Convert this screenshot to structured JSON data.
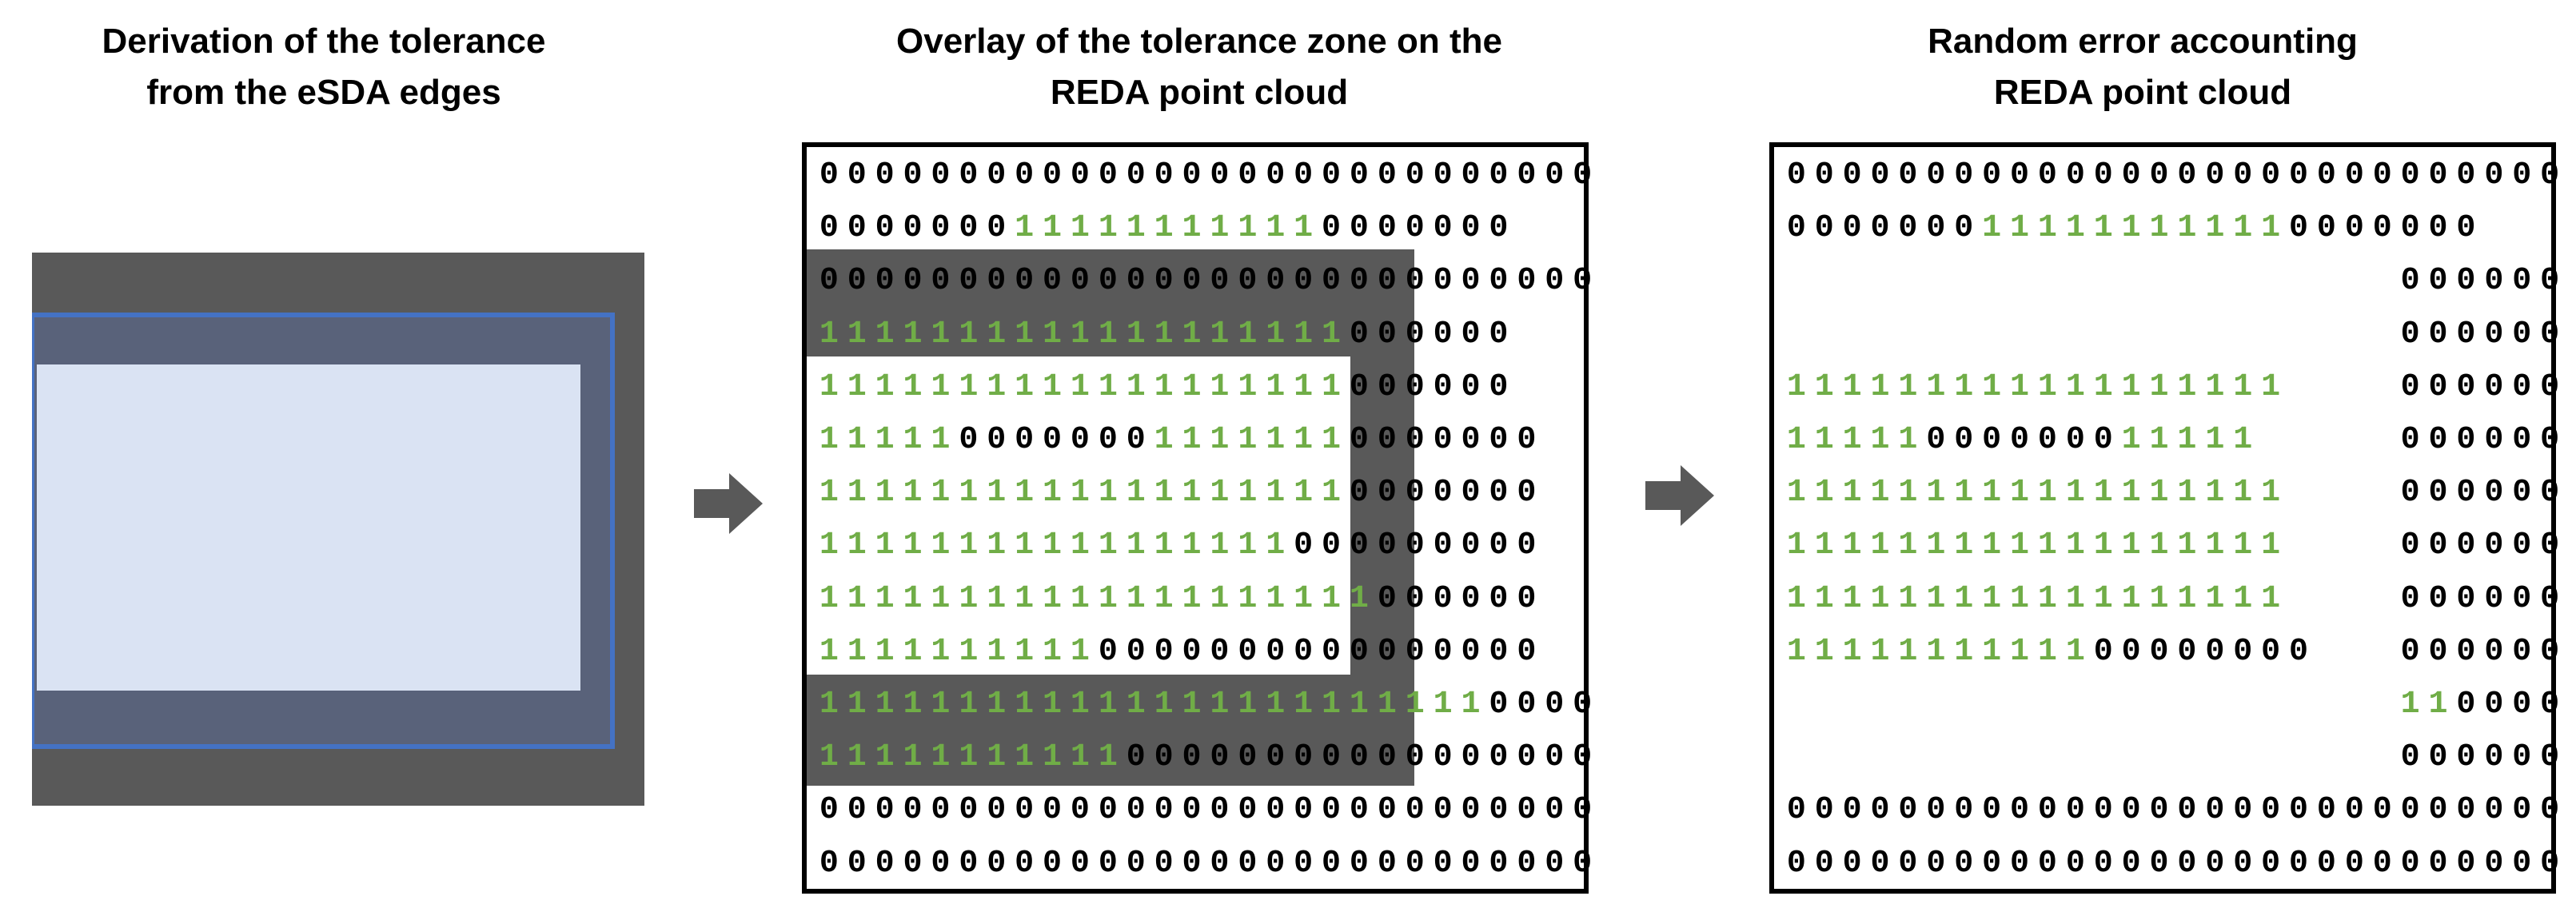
{
  "titles": {
    "panel1": [
      "Derivation of the tolerance",
      "from the eSDA edges"
    ],
    "panel2": [
      "Overlay of the tolerance zone on the",
      "REDA point cloud"
    ],
    "panel3": [
      "Random error accounting",
      "REDA point cloud"
    ]
  },
  "colors": {
    "one": "#70AD47",
    "zero": "#000000",
    "tolerance_zone": "#595959",
    "edge_outline": "#4472C4",
    "inner_fill": "#DAE3F3",
    "arrow": "#595959"
  },
  "grid_panel2": [
    "0000000000000000000000000000",
    "0000000111111111110000000",
    "0000000000000000000000000000",
    "1111111111111111111000000",
    "1111111111111111111000000",
    "11111000000011111110000000",
    "11111111111111111110000000",
    "11111111111111111000000000",
    "11111111111111111111000000",
    "11111111110000000000000000",
    "1111111111111111111111110000",
    "1111111111100000000000000000",
    "0000000000000000000000000000",
    "0000000000000000000000000000"
  ],
  "grid_panel3": [
    "0000000000000000000000000000",
    "0000000111111111110000000",
    "                      000000",
    "                      000000",
    "111111111111111111    000000",
    "11111000000011111     000000",
    "111111111111111111    000000",
    "111111111111111111    000000",
    "111111111111111111    000000",
    "1111111111100000000   000000",
    "                      110000",
    "                      000000",
    "0000000000000000000000000000",
    "0000000000000000000000000000"
  ]
}
